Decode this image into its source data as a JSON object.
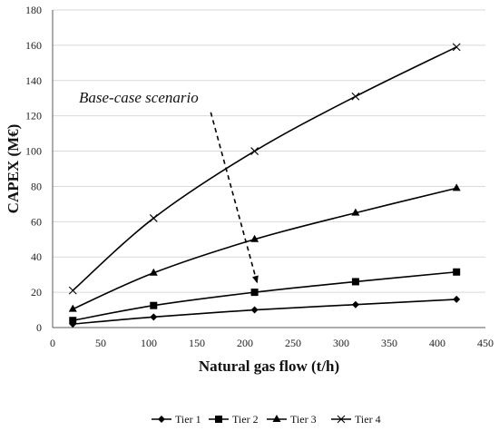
{
  "chart_data": {
    "type": "line",
    "title": "",
    "xlabel": "Natural gas flow (t/h)",
    "ylabel": "CAPEX (M€)",
    "xlim": [
      0,
      450
    ],
    "ylim": [
      0,
      180
    ],
    "x_ticks": [
      0,
      50,
      100,
      150,
      200,
      250,
      300,
      350,
      400,
      450
    ],
    "y_ticks": [
      0,
      20,
      40,
      60,
      80,
      100,
      120,
      140,
      160,
      180
    ],
    "grid": "horizontal",
    "legend_position": "bottom",
    "x": [
      21,
      105,
      210,
      315,
      420
    ],
    "series": [
      {
        "name": "Tier 1",
        "marker": "diamond",
        "values": [
          2,
          6,
          10,
          13,
          16
        ]
      },
      {
        "name": "Tier 2",
        "marker": "square",
        "values": [
          4,
          12.5,
          20,
          26,
          31.5
        ]
      },
      {
        "name": "Tier 3",
        "marker": "triangle",
        "values": [
          10.5,
          31,
          50,
          65,
          79
        ]
      },
      {
        "name": "Tier 4",
        "marker": "x",
        "values": [
          21,
          62,
          100,
          131,
          159
        ]
      }
    ],
    "annotations": [
      {
        "text": "Base-case scenario",
        "style": "italic",
        "arrow_from": [
          105,
          122
        ],
        "arrow_to": [
          210,
          25
        ]
      }
    ]
  }
}
